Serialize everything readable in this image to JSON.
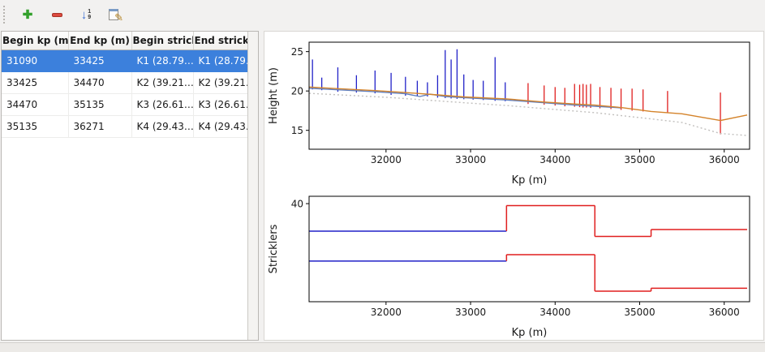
{
  "window": {
    "background": "#f2f1f0"
  },
  "toolbar": {
    "buttons": [
      {
        "name": "add",
        "glyph": "✚",
        "color": "#33a02c"
      },
      {
        "name": "remove",
        "glyph": "",
        "color": "#dc4a3f"
      },
      {
        "name": "sort-numeric",
        "glyph": "↓",
        "digit_top": "1",
        "digit_bottom": "9",
        "color": "#3b6fd4"
      },
      {
        "name": "edit",
        "glyph": "✎",
        "color": "#b8892d"
      }
    ]
  },
  "table": {
    "columns": [
      "Begin kp (m)",
      "End kp (m)",
      "Begin strickler",
      "End strickler"
    ],
    "rows": [
      [
        "31090",
        "33425",
        "K1 (28.79…",
        "K1 (28.79…"
      ],
      [
        "33425",
        "34470",
        "K2 (39.21…",
        "K2 (39.21…"
      ],
      [
        "34470",
        "35135",
        "K3 (26.61…",
        "K3 (26.61…"
      ],
      [
        "35135",
        "36271",
        "K4 (29.43…",
        "K4 (29.43…"
      ]
    ],
    "selected_row": 0,
    "selection_color": "#3c80dc",
    "selection_text_color": "#ffffff"
  },
  "chart_data": [
    {
      "type": "line",
      "title": "",
      "xlabel": "Kp (m)",
      "ylabel": "Height (m)",
      "xlim": [
        31090,
        36300
      ],
      "ylim": [
        12.6,
        26.2
      ],
      "xticks": [
        32000,
        33000,
        34000,
        35000,
        36000
      ],
      "yticks": [
        15,
        20,
        25
      ],
      "series": [
        {
          "name": "bed-line-dotted",
          "color": "#c2c0be",
          "width": 1.4,
          "dash": "2 3",
          "points": [
            [
              31090,
              19.7
            ],
            [
              32000,
              19.2
            ],
            [
              33000,
              18.45
            ],
            [
              33425,
              18.15
            ],
            [
              34000,
              17.65
            ],
            [
              34470,
              17.25
            ],
            [
              35135,
              16.45
            ],
            [
              35500,
              16.0
            ],
            [
              35955,
              14.6
            ],
            [
              36271,
              14.35
            ]
          ]
        },
        {
          "name": "water-level-line",
          "color": "#5f7fbf",
          "width": 1.4,
          "points": [
            [
              31090,
              20.35
            ],
            [
              31430,
              20.15
            ],
            [
              31870,
              19.9
            ],
            [
              32230,
              19.65
            ],
            [
              32400,
              19.3
            ],
            [
              32520,
              19.6
            ],
            [
              32700,
              19.3
            ],
            [
              32920,
              19.15
            ],
            [
              33425,
              18.85
            ],
            [
              33870,
              18.5
            ],
            [
              34230,
              18.2
            ],
            [
              34470,
              18.05
            ],
            [
              34780,
              17.85
            ]
          ]
        },
        {
          "name": "head-line",
          "color": "#d4832a",
          "width": 1.4,
          "points": [
            [
              31090,
              20.5
            ],
            [
              31430,
              20.3
            ],
            [
              31870,
              20.05
            ],
            [
              32230,
              19.8
            ],
            [
              32610,
              19.5
            ],
            [
              32920,
              19.25
            ],
            [
              33425,
              19.0
            ],
            [
              33870,
              18.6
            ],
            [
              34230,
              18.35
            ],
            [
              34470,
              18.2
            ],
            [
              34780,
              17.9
            ],
            [
              35135,
              17.4
            ],
            [
              35500,
              17.1
            ],
            [
              35955,
              16.25
            ],
            [
              36271,
              16.95
            ]
          ]
        }
      ],
      "spike_groups": [
        {
          "name": "profiles-selected-reach",
          "color": "#2121c8",
          "spikes": [
            [
              31130,
              20.2,
              24.0
            ],
            [
              31240,
              20.1,
              21.7
            ],
            [
              31430,
              19.9,
              23.0
            ],
            [
              31650,
              19.8,
              22.0
            ],
            [
              31870,
              19.7,
              22.6
            ],
            [
              32060,
              19.5,
              22.3
            ],
            [
              32230,
              19.4,
              21.8
            ],
            [
              32370,
              19.35,
              21.3
            ],
            [
              32490,
              19.3,
              21.1
            ],
            [
              32610,
              19.15,
              22.0
            ],
            [
              32700,
              19.1,
              25.2
            ],
            [
              32770,
              19.05,
              24.0
            ],
            [
              32840,
              19.0,
              25.3
            ],
            [
              32920,
              18.95,
              22.1
            ],
            [
              33030,
              18.9,
              21.4
            ],
            [
              33150,
              18.85,
              21.3
            ],
            [
              33290,
              18.75,
              24.3
            ],
            [
              33410,
              18.7,
              21.1
            ]
          ]
        },
        {
          "name": "profiles-other-reaches",
          "color": "#e01f1f",
          "spikes": [
            [
              33680,
              18.35,
              21.0
            ],
            [
              33870,
              18.25,
              20.7
            ],
            [
              34000,
              18.15,
              20.5
            ],
            [
              34115,
              18.05,
              20.4
            ],
            [
              34230,
              18.0,
              20.9
            ],
            [
              34290,
              17.95,
              20.8
            ],
            [
              34330,
              17.9,
              20.9
            ],
            [
              34370,
              17.9,
              20.8
            ],
            [
              34420,
              17.85,
              20.9
            ],
            [
              34530,
              17.8,
              20.5
            ],
            [
              34660,
              17.7,
              20.4
            ],
            [
              34780,
              17.6,
              20.3
            ],
            [
              34910,
              17.5,
              20.3
            ],
            [
              35040,
              17.4,
              20.2
            ],
            [
              35330,
              17.2,
              20.0
            ],
            [
              35955,
              14.5,
              19.8
            ]
          ]
        }
      ]
    },
    {
      "type": "step",
      "title": "",
      "xlabel": "Kp (m)",
      "ylabel": "Stricklers",
      "xlim": [
        31090,
        36300
      ],
      "ylim": [
        0,
        43
      ],
      "xticks": [
        32000,
        33000,
        34000,
        35000,
        36000
      ],
      "yticks": [
        40
      ],
      "step_series": [
        {
          "name": "major-bed-strickler",
          "segments": [
            {
              "x0": 31090,
              "x1": 33425,
              "y": 28.79,
              "color": "#2121c8"
            },
            {
              "x0": 33425,
              "x1": 34470,
              "y": 39.21,
              "color": "#e01f1f"
            },
            {
              "x0": 34470,
              "x1": 35135,
              "y": 26.61,
              "color": "#e01f1f"
            },
            {
              "x0": 35135,
              "x1": 36271,
              "y": 29.43,
              "color": "#e01f1f"
            }
          ]
        },
        {
          "name": "minor-bed-strickler",
          "segments": [
            {
              "x0": 31090,
              "x1": 33425,
              "y": 16.6,
              "color": "#2121c8"
            },
            {
              "x0": 33425,
              "x1": 34470,
              "y": 19.2,
              "color": "#e01f1f"
            },
            {
              "x0": 34470,
              "x1": 35135,
              "y": 4.3,
              "color": "#e01f1f"
            },
            {
              "x0": 35135,
              "x1": 36271,
              "y": 5.5,
              "color": "#e01f1f"
            }
          ]
        }
      ]
    }
  ]
}
